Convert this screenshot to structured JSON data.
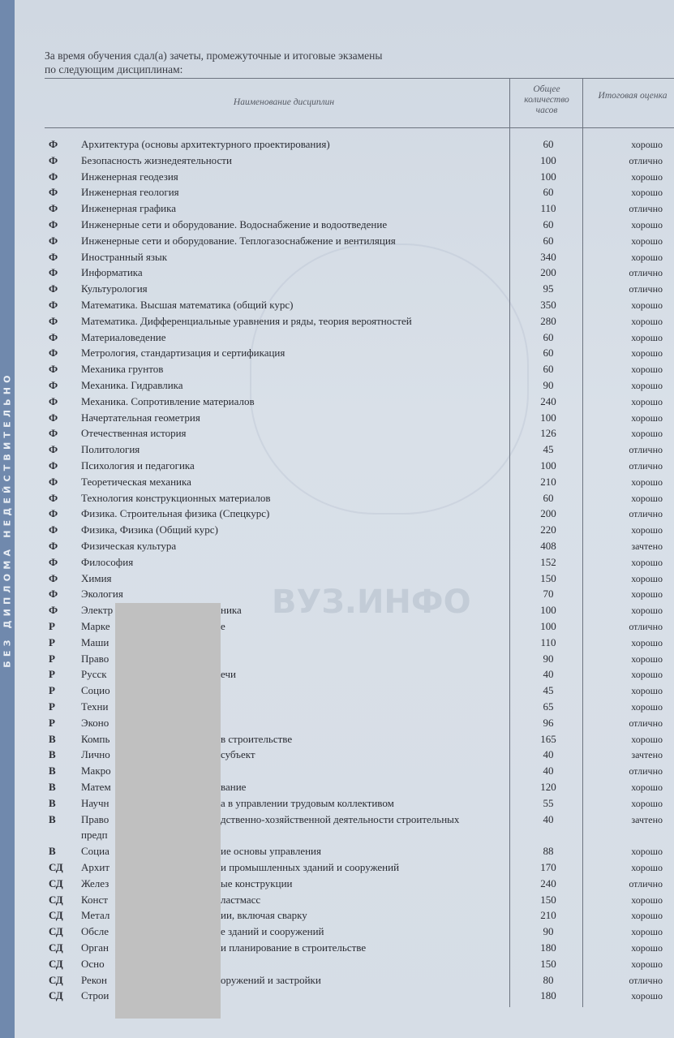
{
  "side_strip": {
    "text": "БЕЗ ДИПЛОМА НЕДЕЙСТВИТЕЛЬНО",
    "color": "#7089ad"
  },
  "intro": {
    "line1": "За время обучения сдал(а) зачеты, промежуточные и итоговые экзамены",
    "line2": "по следующим дисциплинам:"
  },
  "table": {
    "headers": {
      "name": "Наименование дисциплин",
      "hours": "Общее количество часов",
      "grade": "Итоговая оценка"
    },
    "rows": [
      {
        "code": "Ф",
        "name": "Архитектура (основы архитектурного проектирования)",
        "hours": "60",
        "grade": "хорошо"
      },
      {
        "code": "Ф",
        "name": "Безопасность жизнедеятельности",
        "hours": "100",
        "grade": "отлично"
      },
      {
        "code": "Ф",
        "name": "Инженерная геодезия",
        "hours": "100",
        "grade": "хорошо"
      },
      {
        "code": "Ф",
        "name": "Инженерная геология",
        "hours": "60",
        "grade": "хорошо"
      },
      {
        "code": "Ф",
        "name": "Инженерная графика",
        "hours": "110",
        "grade": "отлично"
      },
      {
        "code": "Ф",
        "name": "Инженерные сети и оборудование. Водоснабжение и водоотведение",
        "hours": "60",
        "grade": "хорошо"
      },
      {
        "code": "Ф",
        "name": "Инженерные сети и оборудование. Теплогазоснабжение и вентиляция",
        "hours": "60",
        "grade": "хорошо"
      },
      {
        "code": "Ф",
        "name": "Иностранный язык",
        "hours": "340",
        "grade": "хорошо"
      },
      {
        "code": "Ф",
        "name": "Информатика",
        "hours": "200",
        "grade": "отлично"
      },
      {
        "code": "Ф",
        "name": "Культурология",
        "hours": "95",
        "grade": "отлично"
      },
      {
        "code": "Ф",
        "name": "Математика. Высшая математика (общий курс)",
        "hours": "350",
        "grade": "хорошо"
      },
      {
        "code": "Ф",
        "name": "Математика. Дифференциальные уравнения и ряды, теория вероятностей",
        "hours": "280",
        "grade": "хорошо"
      },
      {
        "code": "Ф",
        "name": "Материаловедение",
        "hours": "60",
        "grade": "хорошо"
      },
      {
        "code": "Ф",
        "name": "Метрология, стандартизация и сертификация",
        "hours": "60",
        "grade": "хорошо"
      },
      {
        "code": "Ф",
        "name": "Механика грунтов",
        "hours": "60",
        "grade": "хорошо"
      },
      {
        "code": "Ф",
        "name": "Механика. Гидравлика",
        "hours": "90",
        "grade": "хорошо"
      },
      {
        "code": "Ф",
        "name": "Механика. Сопротивление материалов",
        "hours": "240",
        "grade": "хорошо"
      },
      {
        "code": "Ф",
        "name": "Начертательная геометрия",
        "hours": "100",
        "grade": "хорошо"
      },
      {
        "code": "Ф",
        "name": "Отечественная история",
        "hours": "126",
        "grade": "хорошо"
      },
      {
        "code": "Ф",
        "name": "Политология",
        "hours": "45",
        "grade": "отлично"
      },
      {
        "code": "Ф",
        "name": "Психология и педагогика",
        "hours": "100",
        "grade": "отлично"
      },
      {
        "code": "Ф",
        "name": "Теоретическая механика",
        "hours": "210",
        "grade": "хорошо"
      },
      {
        "code": "Ф",
        "name": "Технология конструкционных материалов",
        "hours": "60",
        "grade": "хорошо"
      },
      {
        "code": "Ф",
        "name": "Физика. Строительная физика (Спецкурс)",
        "hours": "200",
        "grade": "отлично"
      },
      {
        "code": "Ф",
        "name": "Физика, Физика (Общий курс)",
        "hours": "220",
        "grade": "хорошо"
      },
      {
        "code": "Ф",
        "name": "Физическая культура",
        "hours": "408",
        "grade": "зачтено"
      },
      {
        "code": "Ф",
        "name": "Философия",
        "hours": "152",
        "grade": "хорошо"
      },
      {
        "code": "Ф",
        "name": "Химия",
        "hours": "150",
        "grade": "хорошо"
      },
      {
        "code": "Ф",
        "name": "Экология",
        "hours": "70",
        "grade": "хорошо"
      },
      {
        "code": "Ф",
        "name": "Электр",
        "tail": "ника",
        "hours": "100",
        "grade": "хорошо"
      },
      {
        "code": "Р",
        "name": "Марке",
        "tail": "е",
        "hours": "100",
        "grade": "отлично"
      },
      {
        "code": "Р",
        "name": "Маши",
        "tail": "",
        "hours": "110",
        "grade": "хорошо"
      },
      {
        "code": "Р",
        "name": "Право",
        "tail": "",
        "hours": "90",
        "grade": "хорошо"
      },
      {
        "code": "Р",
        "name": "Русск",
        "tail": "ечи",
        "hours": "40",
        "grade": "хорошо"
      },
      {
        "code": "Р",
        "name": "Социо",
        "tail": "",
        "hours": "45",
        "grade": "хорошо"
      },
      {
        "code": "Р",
        "name": "Техни",
        "tail": "",
        "hours": "65",
        "grade": "хорошо"
      },
      {
        "code": "Р",
        "name": "Эконо",
        "tail": "",
        "hours": "96",
        "grade": "отлично"
      },
      {
        "code": "В",
        "name": "Компь",
        "tail": "в строительстве",
        "hours": "165",
        "grade": "хорошо"
      },
      {
        "code": "В",
        "name": "Лично",
        "tail": "субъект",
        "hours": "40",
        "grade": "зачтено"
      },
      {
        "code": "В",
        "name": "Макро",
        "tail": "",
        "hours": "40",
        "grade": "отлично"
      },
      {
        "code": "В",
        "name": "Матем",
        "tail": "вание",
        "hours": "120",
        "grade": "хорошо"
      },
      {
        "code": "В",
        "name": "Научн",
        "tail": "а в управлении трудовым коллективом",
        "hours": "55",
        "grade": "хорошо"
      },
      {
        "code": "В",
        "name": "Право",
        "tail": "дственно-хозяйственной деятельности строительных",
        "hours": "40",
        "grade": "зачтено"
      },
      {
        "code": "",
        "name": "предп",
        "tail": "",
        "hours": "",
        "grade": ""
      },
      {
        "code": "В",
        "name": "Социа",
        "tail": "ие основы управления",
        "hours": "88",
        "grade": "хорошо"
      },
      {
        "code": "СД",
        "name": "Архит",
        "tail": "и промышленных зданий и сооружений",
        "hours": "170",
        "grade": "хорошо"
      },
      {
        "code": "СД",
        "name": "Желез",
        "tail": "ые конструкции",
        "hours": "240",
        "grade": "отлично"
      },
      {
        "code": "СД",
        "name": "Конст",
        "tail": "ластмасс",
        "hours": "150",
        "grade": "хорошо"
      },
      {
        "code": "СД",
        "name": "Метал",
        "tail": "ии, включая сварку",
        "hours": "210",
        "grade": "хорошо"
      },
      {
        "code": "СД",
        "name": "Обсле",
        "tail": "е зданий и сооружений",
        "hours": "90",
        "grade": "хорошо"
      },
      {
        "code": "СД",
        "name": "Орган",
        "tail": "и планирование в строительстве",
        "hours": "180",
        "grade": "хорошо"
      },
      {
        "code": "СД",
        "name": "Осно",
        "tail": "",
        "hours": "150",
        "grade": "хорошо"
      },
      {
        "code": "СД",
        "name": "Рекон",
        "tail": "оружений и застройки",
        "hours": "80",
        "grade": "отлично"
      },
      {
        "code": "СД",
        "name": "Строи",
        "tail": "",
        "hours": "180",
        "grade": "хорошо"
      }
    ]
  },
  "watermark": "ВУЗ.ИНФО",
  "redaction_color": "#c0c0c0"
}
